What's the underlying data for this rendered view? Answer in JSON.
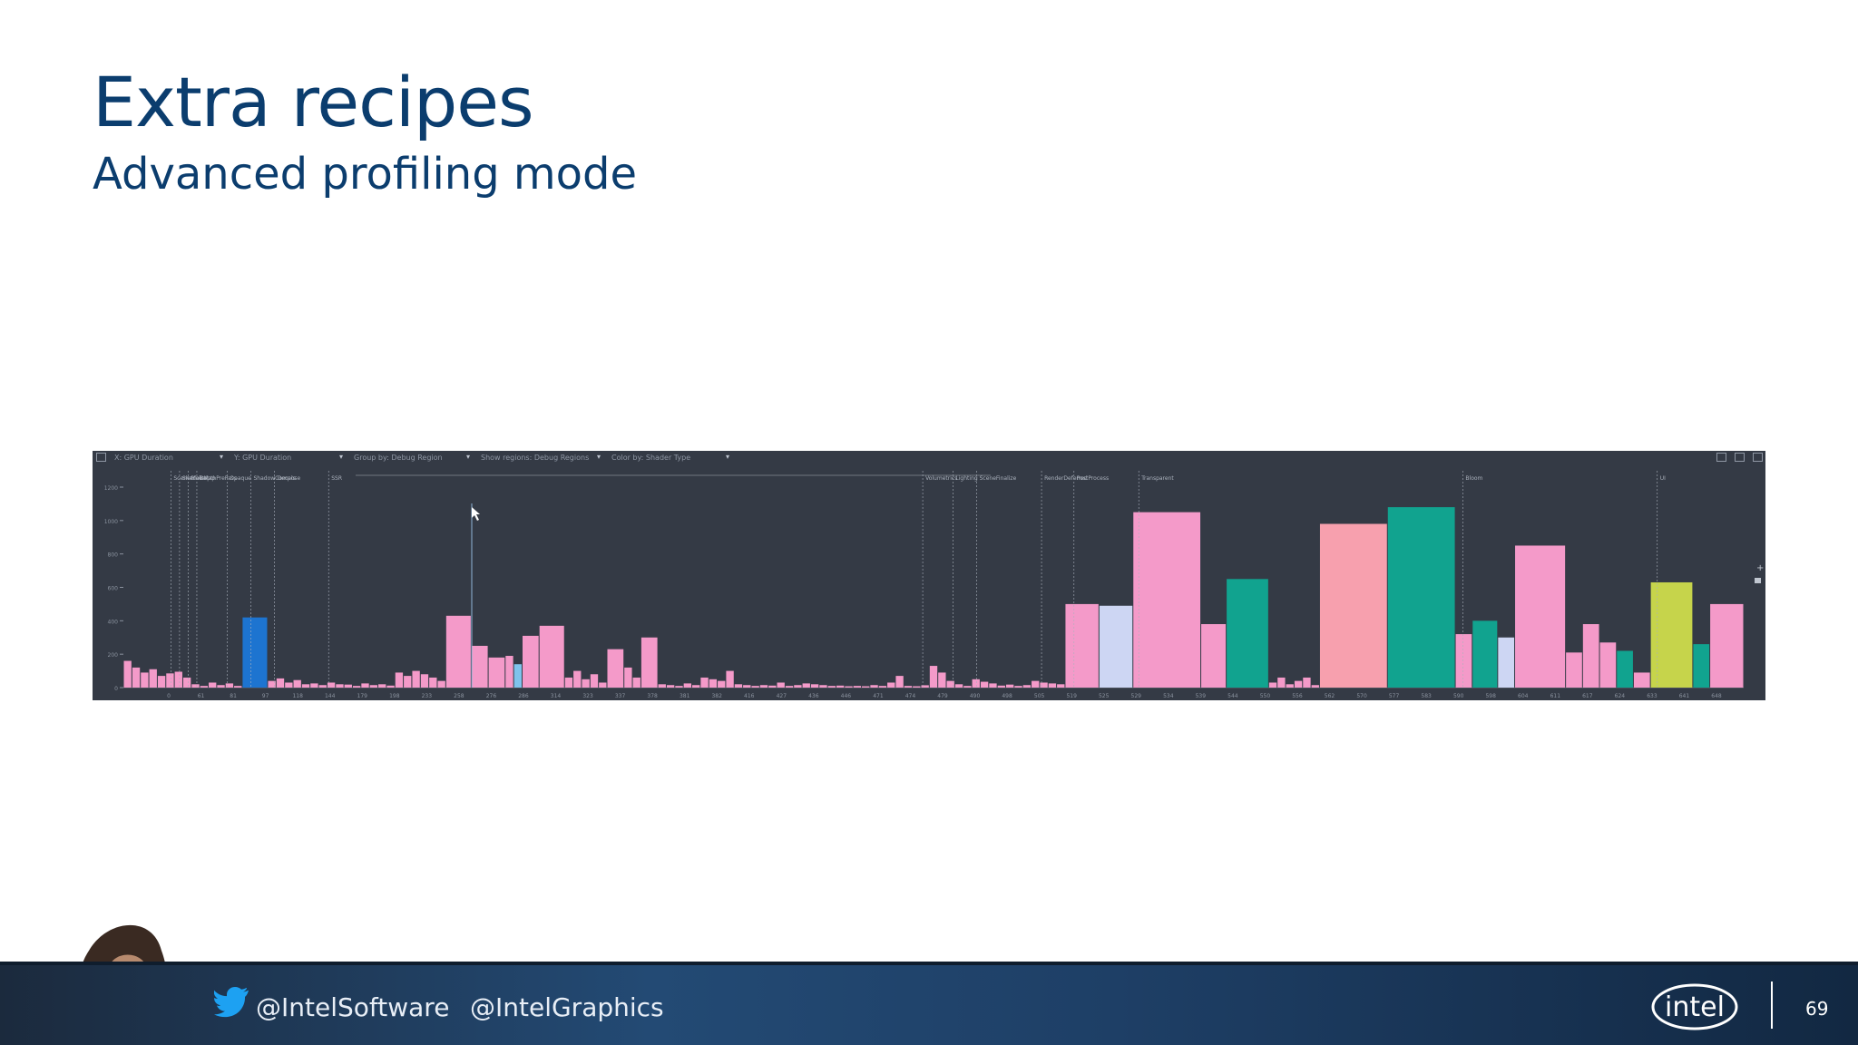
{
  "slide": {
    "title": "Extra recipes",
    "subtitle": "Advanced profiling mode",
    "page_number": "69"
  },
  "footer": {
    "twitter_handle_1": "@IntelSoftware",
    "twitter_handle_2": "@IntelGraphics",
    "logo": "intel"
  },
  "colors": {
    "title": "#0b3d6e",
    "profiler_background": "#343a45",
    "pink": "#f49ac9",
    "salmon": "#f7a0ae",
    "teal": "#11a38f",
    "blue": "#1d74d0",
    "light_blue": "#7fc3ec",
    "lavender": "#cdd6f3",
    "lime": "#c6d44b"
  },
  "icons": [
    "lock-icon",
    "share-icon",
    "export-icon",
    "image-icon",
    "zoom-in-icon",
    "lock-icon-small",
    "mouse-cursor-icon",
    "twitter-bird-icon",
    "intel-logo-icon"
  ],
  "profiler": {
    "toolbar_dropdowns": [
      "X: GPU Duration",
      "Y: GPU Duration",
      "Group by: Debug Region",
      "Show regions: Debug Regions",
      "Color by: Shader Type"
    ]
  },
  "chart_data": {
    "type": "bar",
    "title": "",
    "ylabel": "",
    "xlabel": "",
    "ylim": [
      0,
      1200
    ],
    "y_ticks": [
      0,
      200,
      400,
      600,
      800,
      1000,
      1200
    ],
    "grid": false,
    "legend": "none",
    "series": [
      {
        "values": [
          160,
          120,
          90,
          110,
          70,
          85,
          95,
          60,
          20,
          10,
          30,
          15,
          25,
          10,
          420,
          40,
          55,
          30,
          45,
          20,
          25,
          15,
          30,
          20,
          18,
          10,
          25,
          15,
          20,
          12,
          90,
          70,
          100,
          80,
          60,
          40,
          430,
          250,
          180,
          190,
          140,
          310,
          370,
          60,
          100,
          50,
          80,
          30,
          230,
          120,
          60,
          300,
          20,
          15,
          10,
          25,
          15,
          60,
          50,
          40,
          100,
          20,
          15,
          10,
          15,
          12,
          30,
          10,
          15,
          25,
          20,
          15,
          10,
          12,
          8,
          10,
          8,
          15,
          10,
          30,
          70,
          10,
          8,
          14,
          130,
          90,
          40,
          20,
          10,
          50,
          35,
          25,
          12,
          18,
          10,
          15,
          40,
          30,
          25,
          20,
          500,
          490,
          1050,
          380,
          650,
          30,
          60,
          20,
          40,
          60,
          15,
          980,
          1080,
          320,
          400,
          300,
          850,
          210,
          380,
          270,
          220,
          90,
          630,
          260,
          500
        ],
        "colors": [
          "p",
          "p",
          "p",
          "p",
          "p",
          "p",
          "p",
          "p",
          "p",
          "p",
          "p",
          "p",
          "p",
          "p",
          "b",
          "p",
          "p",
          "p",
          "p",
          "p",
          "p",
          "p",
          "p",
          "p",
          "p",
          "p",
          "p",
          "p",
          "p",
          "p",
          "p",
          "p",
          "p",
          "p",
          "p",
          "p",
          "p",
          "p",
          "p",
          "p",
          "lb",
          "p",
          "p",
          "p",
          "p",
          "p",
          "p",
          "p",
          "p",
          "p",
          "p",
          "p",
          "p",
          "p",
          "p",
          "p",
          "p",
          "p",
          "p",
          "p",
          "p",
          "p",
          "p",
          "p",
          "p",
          "p",
          "p",
          "p",
          "p",
          "p",
          "p",
          "p",
          "p",
          "p",
          "p",
          "p",
          "p",
          "p",
          "p",
          "p",
          "p",
          "p",
          "p",
          "p",
          "p",
          "p",
          "p",
          "p",
          "p",
          "p",
          "p",
          "p",
          "p",
          "p",
          "p",
          "p",
          "p",
          "p",
          "p",
          "p",
          "p",
          "lv",
          "p",
          "p",
          "t",
          "p",
          "p",
          "p",
          "p",
          "p",
          "p",
          "s",
          "t",
          "p",
          "t",
          "lv",
          "p",
          "p",
          "p",
          "p",
          "t",
          "p",
          "l",
          "t",
          "p"
        ],
        "widths": [
          1,
          1,
          1,
          1,
          1,
          1,
          1,
          1,
          1,
          1,
          1,
          1,
          1,
          1,
          3,
          1,
          1,
          1,
          1,
          1,
          1,
          1,
          1,
          1,
          1,
          1,
          1,
          1,
          1,
          1,
          1,
          1,
          1,
          1,
          1,
          1,
          3,
          2,
          2,
          1,
          1,
          2,
          3,
          1,
          1,
          1,
          1,
          1,
          2,
          1,
          1,
          2,
          1,
          1,
          1,
          1,
          1,
          1,
          1,
          1,
          1,
          1,
          1,
          1,
          1,
          1,
          1,
          1,
          1,
          1,
          1,
          1,
          1,
          1,
          1,
          1,
          1,
          1,
          1,
          1,
          1,
          1,
          1,
          1,
          1,
          1,
          1,
          1,
          1,
          1,
          1,
          1,
          1,
          1,
          1,
          1,
          1,
          1,
          1,
          1,
          4,
          4,
          8,
          3,
          5,
          1,
          1,
          1,
          1,
          1,
          1,
          8,
          8,
          2,
          3,
          2,
          6,
          2,
          2,
          2,
          2,
          2,
          5,
          2,
          4
        ]
      }
    ],
    "region_labels": [
      "SceneGlobal",
      "ShadowMap",
      "Main",
      "DepthPrePass",
      "Opaque",
      "ShadowCompose",
      "Decals",
      "SSR",
      "Volumetrics",
      "Lighting",
      "SceneFinalize",
      "RenderDeferred",
      "PostProcess",
      "Transparent",
      "Bloom",
      "UI"
    ],
    "x_tick_labels": [
      "0",
      "61",
      "81",
      "97",
      "118",
      "144",
      "179",
      "198",
      "233",
      "258",
      "276",
      "286",
      "314",
      "323",
      "337",
      "378",
      "381",
      "382",
      "416",
      "427",
      "436",
      "446",
      "471",
      "474",
      "479",
      "490",
      "498",
      "505",
      "519",
      "525",
      "529",
      "534",
      "539",
      "544",
      "550",
      "556",
      "562",
      "570",
      "577",
      "583",
      "590",
      "598",
      "604",
      "611",
      "617",
      "624",
      "633",
      "641",
      "648"
    ]
  }
}
